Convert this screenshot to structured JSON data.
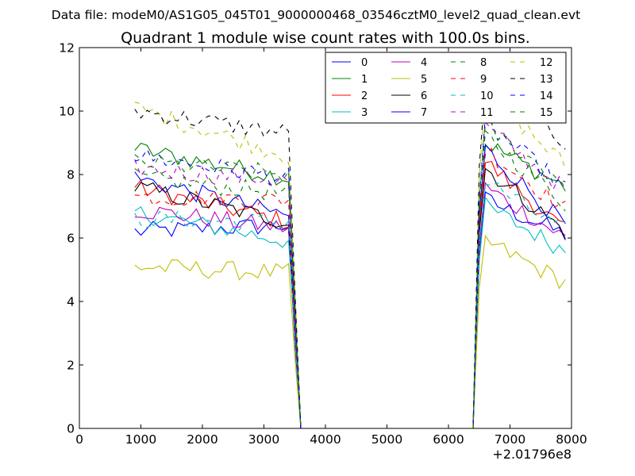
{
  "header": {
    "data_file": "Data file: modeM0/AS1G05_045T01_9000000468_03546cztM0_level2_quad_clean.evt"
  },
  "chart_data": {
    "type": "line",
    "title": "Quadrant 1 module wise count rates with 100.0s bins.",
    "xlabel": "",
    "ylabel": "",
    "x_offset_label": "+2.01796e8",
    "xlim": [
      0,
      8000
    ],
    "ylim": [
      0,
      12
    ],
    "xticks": [
      0,
      1000,
      2000,
      3000,
      4000,
      5000,
      6000,
      7000,
      8000
    ],
    "xtick_labels": [
      "0",
      "1000",
      "2000",
      "3000",
      "4000",
      "5000",
      "6000",
      "7000",
      "8000"
    ],
    "yticks": [
      0,
      2,
      4,
      6,
      8,
      10,
      12
    ],
    "ytick_labels": [
      "0",
      "2",
      "4",
      "6",
      "8",
      "10",
      "12"
    ],
    "legend_position": "top-right",
    "legend_columns": 4,
    "segment1": {
      "x_start": 900,
      "x_step": 100,
      "x_end": 3600
    },
    "segment2": {
      "x_start": 6400,
      "x_step": 100,
      "x_end": 7900
    },
    "series": [
      {
        "name": "0",
        "color": "#0000ff",
        "dash": "solid",
        "level1": 6.2,
        "level2": 6.1,
        "peak": 7.2
      },
      {
        "name": "1",
        "color": "#008000",
        "dash": "solid",
        "level1": 8.8,
        "level2": 7.6,
        "peak": 9.0
      },
      {
        "name": "2",
        "color": "#ff0000",
        "dash": "solid",
        "level1": 7.6,
        "level2": 6.2,
        "peak": 8.4
      },
      {
        "name": "3",
        "color": "#00bfbf",
        "dash": "solid",
        "level1": 6.8,
        "level2": 5.6,
        "peak": 7.0
      },
      {
        "name": "4",
        "color": "#bf00bf",
        "dash": "solid",
        "level1": 6.9,
        "level2": 6.0,
        "peak": 7.6
      },
      {
        "name": "5",
        "color": "#bfbf00",
        "dash": "solid",
        "level1": 5.1,
        "level2": 4.6,
        "peak": 5.9
      },
      {
        "name": "6",
        "color": "#000000",
        "dash": "solid",
        "level1": 7.6,
        "level2": 6.2,
        "peak": 8.2
      },
      {
        "name": "7",
        "color": "#0000ff",
        "dash": "solid",
        "level1": 7.9,
        "level2": 6.4,
        "peak": 8.8
      },
      {
        "name": "8",
        "color": "#008000",
        "dash": "dashed",
        "level1": 7.9,
        "level2": 7.1,
        "peak": 9.2
      },
      {
        "name": "9",
        "color": "#ff0000",
        "dash": "dashed",
        "level1": 7.3,
        "level2": 6.9,
        "peak": 8.8
      },
      {
        "name": "10",
        "color": "#00bfbf",
        "dash": "dashed",
        "level1": 6.6,
        "level2": 6.2,
        "peak": 7.8
      },
      {
        "name": "11",
        "color": "#bf00bf",
        "dash": "dashed",
        "level1": 8.2,
        "level2": 7.5,
        "peak": 9.5
      },
      {
        "name": "12",
        "color": "#bfbf00",
        "dash": "dashed",
        "level1": 10.1,
        "level2": 8.3,
        "peak": 10.6
      },
      {
        "name": "13",
        "color": "#000000",
        "dash": "dashed",
        "level1": 10.0,
        "level2": 9.0,
        "peak": 11.0
      },
      {
        "name": "14",
        "color": "#0000ff",
        "dash": "dashed",
        "level1": 8.6,
        "level2": 7.6,
        "peak": 9.6
      },
      {
        "name": "15",
        "color": "#008000",
        "dash": "dashed",
        "level1": 8.4,
        "level2": 7.7,
        "peak": 9.5
      }
    ]
  }
}
